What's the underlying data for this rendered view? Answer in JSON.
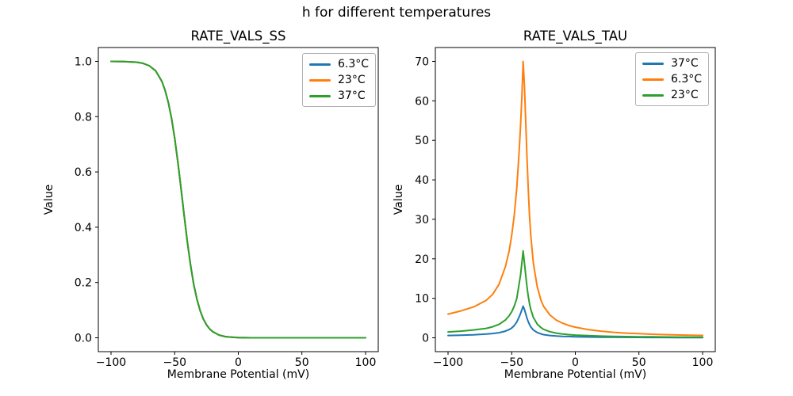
{
  "figure": {
    "suptitle": "h for different temperatures",
    "background": "#ffffff"
  },
  "chart_data": [
    {
      "type": "line",
      "title": "RATE_VALS_SS",
      "xlabel": "Membrane Potential (mV)",
      "ylabel": "Value",
      "xlim": [
        -110,
        110
      ],
      "ylim": [
        -0.05,
        1.05
      ],
      "grid": false,
      "xticks": [
        -100,
        -50,
        0,
        50,
        100
      ],
      "xtick_labels": [
        "−100",
        "−50",
        "0",
        "50",
        "100"
      ],
      "yticks": [
        0,
        0.2,
        0.4,
        0.6,
        0.8,
        1.0
      ],
      "ytick_labels": [
        "0.0",
        "0.2",
        "0.4",
        "0.6",
        "0.8",
        "1.0"
      ],
      "x": [
        -100,
        -90,
        -80,
        -75,
        -70,
        -65,
        -60,
        -57.5,
        -55,
        -52.5,
        -50,
        -47.5,
        -45,
        -42.5,
        -40,
        -37.5,
        -35,
        -32.5,
        -30,
        -27.5,
        -25,
        -22.5,
        -20,
        -15,
        -10,
        -5,
        0,
        10,
        20,
        40,
        60,
        80,
        100
      ],
      "series": [
        {
          "name": "6.3°C",
          "color": "#1f77b4",
          "values": [
            1.0,
            0.999,
            0.997,
            0.993,
            0.984,
            0.966,
            0.927,
            0.895,
            0.851,
            0.794,
            0.722,
            0.635,
            0.54,
            0.441,
            0.346,
            0.263,
            0.193,
            0.139,
            0.098,
            0.068,
            0.047,
            0.032,
            0.022,
            0.01,
            0.004,
            0.002,
            0.001,
            0.0,
            0.0,
            0.0,
            0.0,
            0.0,
            0.0
          ]
        },
        {
          "name": "23°C",
          "color": "#ff7f0e",
          "values": [
            1.0,
            0.999,
            0.997,
            0.993,
            0.984,
            0.966,
            0.927,
            0.895,
            0.851,
            0.794,
            0.722,
            0.635,
            0.54,
            0.441,
            0.346,
            0.263,
            0.193,
            0.139,
            0.098,
            0.068,
            0.047,
            0.032,
            0.022,
            0.01,
            0.004,
            0.002,
            0.001,
            0.0,
            0.0,
            0.0,
            0.0,
            0.0,
            0.0
          ]
        },
        {
          "name": "37°C",
          "color": "#2ca02c",
          "values": [
            1.0,
            0.999,
            0.997,
            0.993,
            0.984,
            0.966,
            0.927,
            0.895,
            0.851,
            0.794,
            0.722,
            0.635,
            0.54,
            0.441,
            0.346,
            0.263,
            0.193,
            0.139,
            0.098,
            0.068,
            0.047,
            0.032,
            0.022,
            0.01,
            0.004,
            0.002,
            0.001,
            0.0,
            0.0,
            0.0,
            0.0,
            0.0,
            0.0
          ]
        }
      ],
      "legend": {
        "loc": "upper right",
        "entries": [
          {
            "label": "6.3°C",
            "color": "#1f77b4"
          },
          {
            "label": "23°C",
            "color": "#ff7f0e"
          },
          {
            "label": "37°C",
            "color": "#2ca02c"
          }
        ]
      }
    },
    {
      "type": "line",
      "title": "RATE_VALS_TAU",
      "xlabel": "Membrane Potential (mV)",
      "ylabel": "Value",
      "xlim": [
        -110,
        110
      ],
      "ylim": [
        -3.5,
        73.5
      ],
      "grid": false,
      "xticks": [
        -100,
        -50,
        0,
        50,
        100
      ],
      "xtick_labels": [
        "−100",
        "−50",
        "0",
        "50",
        "100"
      ],
      "yticks": [
        0,
        10,
        20,
        30,
        40,
        50,
        60,
        70
      ],
      "ytick_labels": [
        "0",
        "10",
        "20",
        "30",
        "40",
        "50",
        "60",
        "70"
      ],
      "x": [
        -100,
        -90,
        -80,
        -70,
        -65,
        -60,
        -55,
        -52,
        -50,
        -48,
        -46,
        -44,
        -43,
        -42,
        -41,
        -40,
        -39,
        -38,
        -37,
        -36,
        -35,
        -33,
        -30,
        -27,
        -25,
        -20,
        -15,
        -10,
        -5,
        0,
        10,
        20,
        30,
        40,
        50,
        60,
        70,
        80,
        90,
        100
      ],
      "series": [
        {
          "name": "37°C",
          "color": "#1f77b4",
          "values": [
            0.6,
            0.68,
            0.78,
            0.95,
            1.1,
            1.3,
            1.7,
            2.1,
            2.5,
            3.1,
            4.0,
            5.4,
            6.2,
            7.1,
            8.0,
            7.2,
            6.1,
            5.0,
            4.1,
            3.4,
            2.8,
            2.0,
            1.35,
            1.0,
            0.82,
            0.6,
            0.46,
            0.38,
            0.32,
            0.27,
            0.21,
            0.17,
            0.14,
            0.12,
            0.1,
            0.09,
            0.08,
            0.075,
            0.07,
            0.065
          ]
        },
        {
          "name": "6.3°C",
          "color": "#ff7f0e",
          "values": [
            6.0,
            6.8,
            7.8,
            9.5,
            11,
            13.5,
            18,
            22,
            26,
            31,
            38,
            48,
            54,
            61,
            70,
            64,
            55,
            46,
            38,
            31,
            26,
            19,
            13,
            9.5,
            8.0,
            5.8,
            4.5,
            3.7,
            3.1,
            2.7,
            2.1,
            1.7,
            1.4,
            1.2,
            1.05,
            0.92,
            0.82,
            0.74,
            0.67,
            0.62
          ]
        },
        {
          "name": "23°C",
          "color": "#2ca02c",
          "values": [
            1.5,
            1.7,
            2.0,
            2.4,
            2.8,
            3.4,
            4.5,
            5.6,
            6.6,
            8.0,
            10.0,
            14,
            16,
            19,
            22,
            19,
            16,
            13,
            10.6,
            8.7,
            7.2,
            5.2,
            3.5,
            2.6,
            2.15,
            1.55,
            1.2,
            0.97,
            0.82,
            0.7,
            0.55,
            0.44,
            0.37,
            0.31,
            0.27,
            0.24,
            0.21,
            0.19,
            0.175,
            0.16
          ]
        }
      ],
      "legend": {
        "loc": "upper right",
        "entries": [
          {
            "label": "37°C",
            "color": "#1f77b4"
          },
          {
            "label": "6.3°C",
            "color": "#ff7f0e"
          },
          {
            "label": "23°C",
            "color": "#2ca02c"
          }
        ]
      }
    }
  ]
}
